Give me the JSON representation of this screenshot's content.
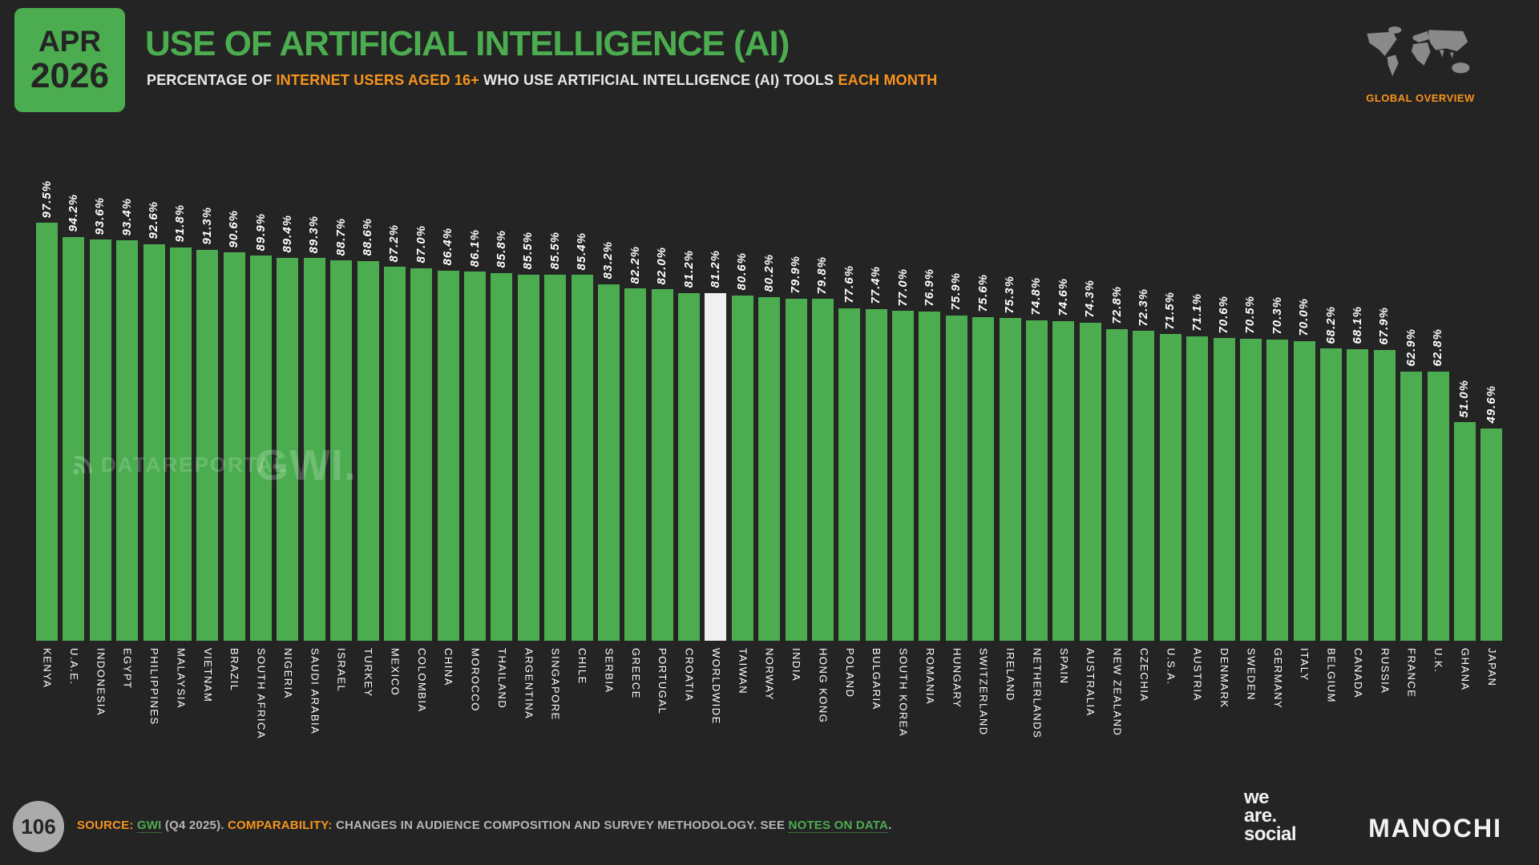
{
  "header": {
    "badge_line1": "APR",
    "badge_line2": "2026",
    "title": "USE OF ARTIFICIAL INTELLIGENCE (AI)",
    "subtitle_part1": "PERCENTAGE OF ",
    "subtitle_hl1": "INTERNET USERS AGED 16+",
    "subtitle_part2": " WHO USE ARTIFICIAL INTELLIGENCE (AI) TOOLS ",
    "subtitle_hl2": "EACH MONTH",
    "global_overview": "GLOBAL OVERVIEW"
  },
  "watermarks": {
    "datareportal": "DATAREPORTAL",
    "gwi": "GWI."
  },
  "chart_data": {
    "type": "bar",
    "title": "Use of artificial intelligence (AI)",
    "ylabel": "% of internet users aged 16+ using AI tools each month",
    "ylim": [
      0,
      100
    ],
    "grid": false,
    "value_suffix": "%",
    "bar_color": "#4bad4f",
    "highlight_color": "#f0f0f0",
    "highlight_index": 25,
    "categories": [
      "KENYA",
      "U.A.E.",
      "INDONESIA",
      "EGYPT",
      "PHILIPPINES",
      "MALAYSIA",
      "VIETNAM",
      "BRAZIL",
      "SOUTH AFRICA",
      "NIGERIA",
      "SAUDI ARABIA",
      "ISRAEL",
      "TURKEY",
      "MEXICO",
      "COLOMBIA",
      "CHINA",
      "MOROCCO",
      "THAILAND",
      "ARGENTINA",
      "SINGAPORE",
      "CHILE",
      "SERBIA",
      "GREECE",
      "PORTUGAL",
      "CROATIA",
      "WORLDWIDE",
      "TAIWAN",
      "NORWAY",
      "INDIA",
      "HONG KONG",
      "POLAND",
      "BULGARIA",
      "SOUTH KOREA",
      "ROMANIA",
      "HUNGARY",
      "SWITZERLAND",
      "IRELAND",
      "NETHERLANDS",
      "SPAIN",
      "AUSTRALIA",
      "NEW ZEALAND",
      "CZECHIA",
      "U.S.A.",
      "AUSTRIA",
      "DENMARK",
      "SWEDEN",
      "GERMANY",
      "ITALY",
      "BELGIUM",
      "CANADA",
      "RUSSIA",
      "FRANCE",
      "U.K.",
      "GHANA",
      "JAPAN"
    ],
    "values": [
      97.5,
      94.2,
      93.6,
      93.4,
      92.6,
      91.8,
      91.3,
      90.6,
      89.9,
      89.4,
      89.3,
      88.7,
      88.6,
      87.2,
      87.0,
      86.4,
      86.1,
      85.8,
      85.5,
      85.5,
      85.4,
      83.2,
      82.2,
      82.0,
      81.2,
      81.2,
      80.6,
      80.2,
      79.9,
      79.8,
      77.6,
      77.4,
      77.0,
      76.9,
      75.9,
      75.6,
      75.3,
      74.8,
      74.6,
      74.3,
      72.8,
      72.3,
      71.5,
      71.1,
      70.6,
      70.5,
      70.3,
      70.0,
      68.2,
      68.1,
      67.9,
      62.9,
      62.8,
      51.0,
      49.6
    ]
  },
  "footer": {
    "page_number": "106",
    "source_label": "SOURCE:",
    "source_link": "GWI",
    "source_rest": "(Q4 2025).",
    "comparability_label": "COMPARABILITY:",
    "comparability_text": "CHANGES IN AUDIENCE COMPOSITION AND SURVEY METHODOLOGY. SEE",
    "notes_link": "NOTES ON DATA",
    "end_period": ".",
    "logo_we": "we",
    "logo_are": "are.",
    "logo_social": "social",
    "logo_manochi": "MANOCHI"
  }
}
